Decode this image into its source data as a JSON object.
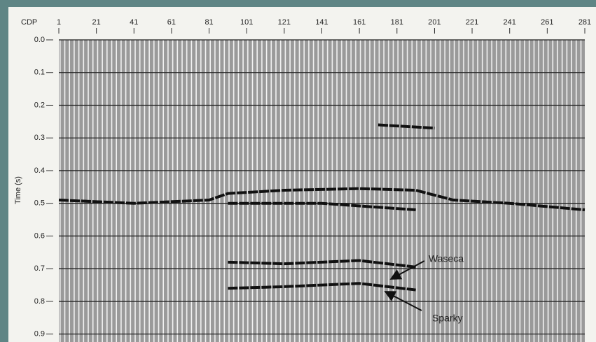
{
  "chart_data": {
    "type": "seismic",
    "x_label": "CDP",
    "y_label": "Time (s)",
    "xlim": [
      1,
      281
    ],
    "xticks": [
      1,
      21,
      41,
      61,
      81,
      101,
      121,
      141,
      161,
      181,
      201,
      221,
      241,
      261,
      281
    ],
    "ylim": [
      0,
      0.92
    ],
    "yticks": [
      {
        "value": 0,
        "label": "0.0"
      },
      0.1,
      0.2,
      0.3,
      0.4,
      0.5,
      0.6,
      0.7,
      0.8,
      0.9
    ],
    "grid": true,
    "color": "#111111",
    "horizons": [
      {
        "x": [
          1,
          41,
          81,
          91,
          121,
          161,
          191,
          211,
          241,
          281
        ],
        "values": [
          0.49,
          0.5,
          0.49,
          0.47,
          0.46,
          0.455,
          0.46,
          0.49,
          0.5,
          0.52
        ]
      },
      {
        "x": [
          91,
          141,
          191
        ],
        "values": [
          0.5,
          0.5,
          0.52
        ]
      },
      {
        "x": [
          171,
          201
        ],
        "values": [
          0.26,
          0.27
        ]
      },
      {
        "x": [
          91,
          121,
          161,
          191
        ],
        "values": [
          0.68,
          0.685,
          0.675,
          0.695
        ]
      },
      {
        "x": [
          91,
          121,
          161,
          191
        ],
        "values": [
          0.76,
          0.755,
          0.745,
          0.765
        ]
      }
    ],
    "annotations": [
      "Waseca",
      "Sparky"
    ]
  }
}
